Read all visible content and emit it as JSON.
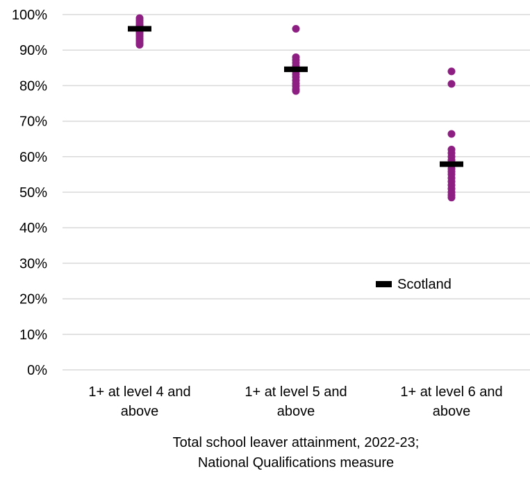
{
  "chart_data": {
    "type": "scatter",
    "ylim": [
      0,
      100
    ],
    "yticks": [
      "0%",
      "10%",
      "20%",
      "30%",
      "40%",
      "50%",
      "60%",
      "70%",
      "80%",
      "90%",
      "100%"
    ],
    "grid": true,
    "legend_position": "right, lower-middle",
    "categories": [
      {
        "lines": [
          "1+ at level 4 and",
          "above"
        ]
      },
      {
        "lines": [
          "1+ at level 5 and",
          "above"
        ]
      },
      {
        "lines": [
          "1+ at level 6 and",
          "above"
        ]
      }
    ],
    "xlabel_lines": [
      "Total school leaver attainment, 2022-23;",
      "National Qualifications measure"
    ],
    "series": [
      {
        "marker": "dot",
        "color": "#8E1F82",
        "values": [
          [
            99.0,
            98.4,
            97.8,
            97.2,
            96.8,
            96.4,
            96.0,
            95.6,
            95.2,
            94.8,
            94.3,
            93.8,
            93.2,
            92.6,
            92.0,
            91.5
          ],
          [
            96.0,
            88.0,
            87.2,
            86.4,
            85.6,
            84.8,
            84.0,
            83.2,
            82.4,
            81.5,
            80.6,
            79.8,
            79.0,
            78.5
          ],
          [
            84.0,
            80.5,
            66.4,
            62.0,
            61.0,
            60.0,
            59.0,
            58.2,
            57.4,
            56.6,
            55.8,
            55.0,
            54.0,
            53.0,
            52.0,
            51.0,
            50.0,
            49.2,
            48.5
          ]
        ]
      },
      {
        "name": "Scotland",
        "marker": "dash",
        "color": "#000000",
        "values": [
          96.0,
          84.6,
          57.9
        ]
      }
    ]
  }
}
